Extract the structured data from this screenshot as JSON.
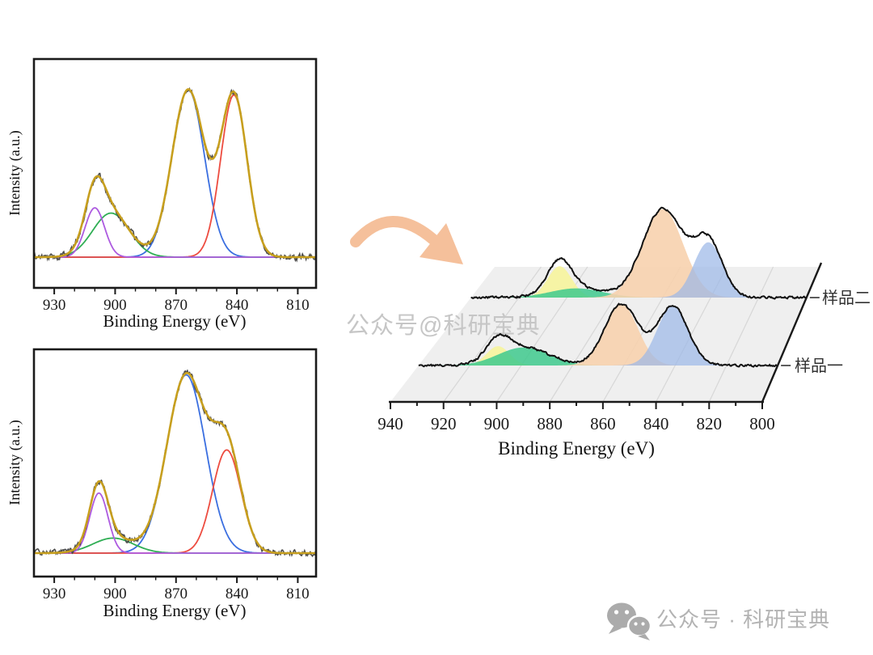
{
  "watermark": {
    "text": "公众号@科研宝典",
    "color": "#c6c6c6"
  },
  "footer": {
    "text": "公众号 · 科研宝典",
    "color": "#b3b3b3",
    "icon": "wechat-icon",
    "icon_color": "#ababab"
  },
  "arrow": {
    "color": "#f5c09b"
  },
  "chart_data": [
    {
      "id": "xps-spectrum-a",
      "type": "line",
      "title": "",
      "xlabel": "Binding Energy (eV)",
      "ylabel": "Intensity (a.u.)",
      "x_range": [
        940,
        801
      ],
      "x_axis_reversed": true,
      "x_ticks": [
        930,
        900,
        870,
        840,
        810
      ],
      "x_minor_step": 10,
      "raw_color": "#4d4d4d",
      "envelope_color": "#c79f1e",
      "noise": 0.028,
      "seed": 7,
      "peaks": [
        {
          "name": "fit-component-blue",
          "color": "#3b6fe0",
          "center": 864,
          "sigma": 8,
          "height": 0.95
        },
        {
          "name": "fit-component-red",
          "color": "#ed4c40",
          "center": 841.5,
          "sigma": 6.5,
          "height": 0.92
        },
        {
          "name": "fit-component-green",
          "color": "#2fae54",
          "center": 902,
          "sigma": 9,
          "height": 0.25
        },
        {
          "name": "fit-component-purple",
          "color": "#ad5be0",
          "center": 910,
          "sigma": 4.8,
          "height": 0.28
        }
      ]
    },
    {
      "id": "xps-spectrum-b",
      "type": "line",
      "title": "",
      "xlabel": "Binding Energy (eV)",
      "ylabel": "Intensity (a.u.)",
      "x_range": [
        940,
        801
      ],
      "x_axis_reversed": true,
      "x_ticks": [
        930,
        900,
        870,
        840,
        810
      ],
      "x_minor_step": 10,
      "raw_color": "#4d4d4d",
      "envelope_color": "#c79f1e",
      "noise": 0.024,
      "seed": 13,
      "peaks": [
        {
          "name": "fit-component-blue",
          "color": "#3b6fe0",
          "center": 865,
          "sigma": 9.5,
          "height": 0.95
        },
        {
          "name": "fit-component-red",
          "color": "#ed4c40",
          "center": 845,
          "sigma": 7,
          "height": 0.55
        },
        {
          "name": "fit-component-green",
          "color": "#2fae54",
          "center": 901,
          "sigma": 10,
          "height": 0.08
        },
        {
          "name": "fit-component-purple",
          "color": "#ad5be0",
          "center": 908,
          "sigma": 4.5,
          "height": 0.32
        }
      ]
    },
    {
      "id": "xps-waterfall-3d",
      "type": "area",
      "title": "",
      "xlabel": "Binding Energy (eV)",
      "x_range": [
        940,
        800
      ],
      "x_axis_reversed": true,
      "x_ticks": [
        940,
        920,
        900,
        880,
        860,
        840,
        820,
        800
      ],
      "x_minor_step": 10,
      "floor_color": "#efefef",
      "grid_color": "#d7d7d7",
      "series": [
        {
          "label": "样品一",
          "relative_intensity": 0.7,
          "envelope_color": "#111111",
          "noise": 2.3,
          "seed": 21,
          "peaks": [
            {
              "name": "fill-yellow",
              "color": "#f6f3a0",
              "opacity": 0.95,
              "center": 909,
              "sigma": 4.5,
              "height": 0.3
            },
            {
              "name": "fill-green",
              "color": "#3ec98d",
              "opacity": 0.85,
              "center": 899,
              "sigma": 10,
              "height": 0.28
            },
            {
              "name": "fill-orange",
              "color": "#f7d2ae",
              "opacity": 0.9,
              "center": 861,
              "sigma": 6.5,
              "height": 0.95
            },
            {
              "name": "fill-blue",
              "color": "#9db8e8",
              "opacity": 0.72,
              "center": 841,
              "sigma": 6,
              "height": 0.92
            }
          ]
        },
        {
          "label": "样品二",
          "relative_intensity": 1.0,
          "envelope_color": "#111111",
          "noise": 2.3,
          "seed": 42,
          "peaks": [
            {
              "name": "fill-yellow",
              "color": "#f6f3a0",
              "opacity": 0.95,
              "center": 903,
              "sigma": 5,
              "height": 0.34
            },
            {
              "name": "fill-green",
              "color": "#3ec98d",
              "opacity": 0.85,
              "center": 896,
              "sigma": 11,
              "height": 0.1
            },
            {
              "name": "fill-orange",
              "color": "#f7d2ae",
              "opacity": 0.9,
              "center": 860,
              "sigma": 8.5,
              "height": 0.96
            },
            {
              "name": "fill-blue",
              "color": "#9db8e8",
              "opacity": 0.72,
              "center": 841,
              "sigma": 6,
              "height": 0.6
            }
          ]
        }
      ]
    }
  ]
}
